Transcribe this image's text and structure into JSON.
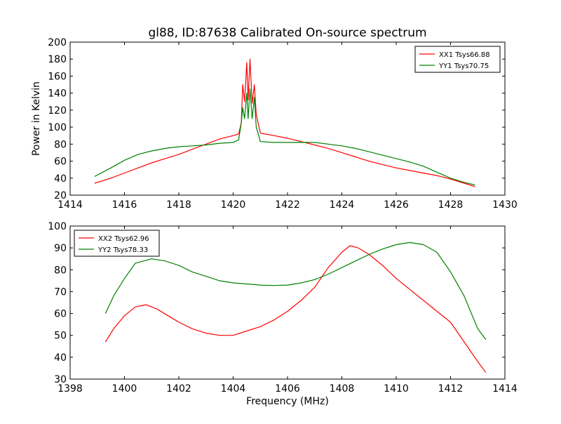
{
  "chart_data": [
    {
      "type": "line",
      "title": "gl88, ID:87638 Calibrated On-source spectrum",
      "xlabel": "",
      "ylabel": "Power in Kelvin",
      "xlim": [
        1414,
        1430
      ],
      "ylim": [
        20,
        200
      ],
      "xticks": [
        1414,
        1416,
        1418,
        1420,
        1422,
        1424,
        1426,
        1428,
        1430
      ],
      "yticks": [
        20,
        40,
        60,
        80,
        100,
        120,
        140,
        160,
        180,
        200
      ],
      "legend_position": "top-right",
      "series": [
        {
          "name": "XX1 Tsys66.88",
          "color": "#ff0000",
          "points": [
            [
              1414.9,
              34
            ],
            [
              1415.5,
              40
            ],
            [
              1416,
              46
            ],
            [
              1416.5,
              52
            ],
            [
              1417,
              58
            ],
            [
              1417.5,
              63
            ],
            [
              1418,
              68
            ],
            [
              1418.5,
              74
            ],
            [
              1419,
              80
            ],
            [
              1419.5,
              86
            ],
            [
              1420,
              90
            ],
            [
              1420.2,
              92
            ],
            [
              1420.3,
              105
            ],
            [
              1420.35,
              150
            ],
            [
              1420.42,
              130
            ],
            [
              1420.5,
              176
            ],
            [
              1420.55,
              132
            ],
            [
              1420.62,
              180
            ],
            [
              1420.7,
              128
            ],
            [
              1420.78,
              150
            ],
            [
              1420.85,
              115
            ],
            [
              1421,
              93
            ],
            [
              1421.5,
              90
            ],
            [
              1422,
              87
            ],
            [
              1422.5,
              83
            ],
            [
              1423,
              79
            ],
            [
              1423.5,
              75
            ],
            [
              1424,
              70
            ],
            [
              1424.5,
              65
            ],
            [
              1425,
              60
            ],
            [
              1425.5,
              56
            ],
            [
              1426,
              52
            ],
            [
              1426.5,
              49
            ],
            [
              1427,
              46
            ],
            [
              1427.5,
              43
            ],
            [
              1428,
              39
            ],
            [
              1428.5,
              34
            ],
            [
              1428.9,
              30
            ]
          ]
        },
        {
          "name": "YY1 Tsys70.75",
          "color": "#008000",
          "points": [
            [
              1414.9,
              42
            ],
            [
              1415.5,
              52
            ],
            [
              1416,
              61
            ],
            [
              1416.5,
              68
            ],
            [
              1417,
              72
            ],
            [
              1417.5,
              75
            ],
            [
              1418,
              77
            ],
            [
              1418.5,
              78
            ],
            [
              1419,
              79
            ],
            [
              1419.5,
              81
            ],
            [
              1420,
              82
            ],
            [
              1420.2,
              85
            ],
            [
              1420.3,
              105
            ],
            [
              1420.35,
              123
            ],
            [
              1420.42,
              110
            ],
            [
              1420.5,
              140
            ],
            [
              1420.55,
              110
            ],
            [
              1420.62,
              145
            ],
            [
              1420.7,
              110
            ],
            [
              1420.78,
              135
            ],
            [
              1420.85,
              100
            ],
            [
              1421,
              83
            ],
            [
              1421.5,
              82
            ],
            [
              1422,
              82
            ],
            [
              1422.5,
              82
            ],
            [
              1423,
              82
            ],
            [
              1423.5,
              80
            ],
            [
              1424,
              78
            ],
            [
              1424.5,
              75
            ],
            [
              1425,
              71
            ],
            [
              1425.5,
              67
            ],
            [
              1426,
              63
            ],
            [
              1426.5,
              59
            ],
            [
              1427,
              54
            ],
            [
              1427.5,
              47
            ],
            [
              1428,
              40
            ],
            [
              1428.5,
              35
            ],
            [
              1428.9,
              32
            ]
          ]
        }
      ]
    },
    {
      "type": "line",
      "title": "",
      "xlabel": "Frequency (MHz)",
      "ylabel": "",
      "xlim": [
        1398,
        1414
      ],
      "ylim": [
        30,
        100
      ],
      "xticks": [
        1398,
        1400,
        1402,
        1404,
        1406,
        1408,
        1410,
        1412,
        1414
      ],
      "yticks": [
        30,
        40,
        50,
        60,
        70,
        80,
        90,
        100
      ],
      "legend_position": "top-left",
      "series": [
        {
          "name": "XX2 Tsys62.96",
          "color": "#ff0000",
          "points": [
            [
              1399.3,
              47
            ],
            [
              1399.6,
              53
            ],
            [
              1400,
              59
            ],
            [
              1400.4,
              63
            ],
            [
              1400.8,
              64
            ],
            [
              1401.2,
              62
            ],
            [
              1401.6,
              59
            ],
            [
              1402,
              56
            ],
            [
              1402.5,
              53
            ],
            [
              1403,
              51
            ],
            [
              1403.5,
              50
            ],
            [
              1404,
              50
            ],
            [
              1404.5,
              52
            ],
            [
              1405,
              54
            ],
            [
              1405.5,
              57
            ],
            [
              1406,
              61
            ],
            [
              1406.5,
              66
            ],
            [
              1407,
              72
            ],
            [
              1407.5,
              81
            ],
            [
              1408,
              88
            ],
            [
              1408.3,
              91
            ],
            [
              1408.6,
              90
            ],
            [
              1409,
              87
            ],
            [
              1409.5,
              82
            ],
            [
              1410,
              76
            ],
            [
              1410.5,
              71
            ],
            [
              1411,
              66
            ],
            [
              1411.5,
              61
            ],
            [
              1412,
              56
            ],
            [
              1412.5,
              47
            ],
            [
              1413,
              38
            ],
            [
              1413.3,
              33
            ]
          ]
        },
        {
          "name": "YY2 Tsys78.33",
          "color": "#008000",
          "points": [
            [
              1399.3,
              60
            ],
            [
              1399.6,
              68
            ],
            [
              1400,
              76
            ],
            [
              1400.4,
              83
            ],
            [
              1401,
              85
            ],
            [
              1401.5,
              84
            ],
            [
              1402,
              82
            ],
            [
              1402.5,
              79
            ],
            [
              1403,
              77
            ],
            [
              1403.5,
              75
            ],
            [
              1404,
              74
            ],
            [
              1404.5,
              73.5
            ],
            [
              1405,
              73
            ],
            [
              1405.5,
              72.8
            ],
            [
              1406,
              73
            ],
            [
              1406.5,
              74
            ],
            [
              1407,
              75.5
            ],
            [
              1407.5,
              78
            ],
            [
              1408,
              81
            ],
            [
              1408.5,
              84
            ],
            [
              1409,
              87
            ],
            [
              1409.5,
              89.5
            ],
            [
              1410,
              91.5
            ],
            [
              1410.5,
              92.5
            ],
            [
              1411,
              91.5
            ],
            [
              1411.5,
              88
            ],
            [
              1412,
              79
            ],
            [
              1412.5,
              68
            ],
            [
              1413,
              53
            ],
            [
              1413.3,
              48
            ]
          ]
        }
      ]
    }
  ]
}
